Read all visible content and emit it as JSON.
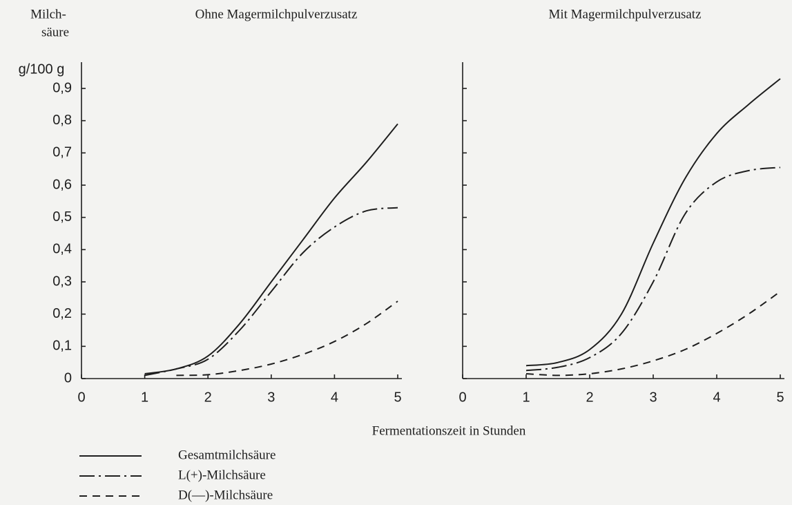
{
  "chart_data": [
    {
      "type": "line",
      "title": "Ohne Magermilchpulverzusatz",
      "ylabel": [
        "Milch-",
        "säure"
      ],
      "yunit": "g/100 g",
      "xlabel": "Fermentationszeit in Stunden",
      "x": [
        1,
        1.5,
        2,
        2.5,
        3,
        3.5,
        4,
        4.5,
        5
      ],
      "xlim": [
        0,
        5
      ],
      "xticks": [
        0,
        1,
        2,
        3,
        4,
        5
      ],
      "ylim": [
        0,
        0.9
      ],
      "yticks": [
        0,
        {
          "value": 0.1,
          "label": "0,1"
        },
        {
          "value": 0.2,
          "label": "0,2"
        },
        {
          "value": 0.3,
          "label": "0,3"
        },
        {
          "value": 0.4,
          "label": "0,4"
        },
        {
          "value": 0.5,
          "label": "0,5"
        },
        {
          "value": 0.6,
          "label": "0,6"
        },
        {
          "value": 0.7,
          "label": "0,7"
        },
        {
          "value": 0.8,
          "label": "0,8"
        },
        {
          "value": 0.9,
          "label": "0,9"
        }
      ],
      "show_ytick_labels": true,
      "grid": false,
      "series": [
        {
          "name": "Gesamtmilchsäure",
          "color": "#1e1e1e",
          "dash": "solid",
          "values": [
            0.015,
            0.03,
            0.07,
            0.17,
            0.3,
            0.43,
            0.56,
            0.67,
            0.79
          ]
        },
        {
          "name": "L(+)-Milchsäure",
          "color": "#1e1e1e",
          "dash": "dashdot",
          "values": [
            0.01,
            0.03,
            0.06,
            0.15,
            0.27,
            0.39,
            0.47,
            0.52,
            0.53
          ]
        },
        {
          "name": "D(—)-Milchsäure",
          "color": "#1e1e1e",
          "dash": "dashed",
          "values": [
            null,
            0.01,
            0.012,
            0.025,
            0.045,
            0.075,
            0.115,
            0.17,
            0.24
          ]
        }
      ]
    },
    {
      "type": "line",
      "title": "Mit Magermilchpulverzusatz",
      "x": [
        1,
        1.5,
        2,
        2.5,
        3,
        3.5,
        4,
        4.5,
        5
      ],
      "xlim": [
        0,
        5
      ],
      "xticks": [
        0,
        1,
        2,
        3,
        4,
        5
      ],
      "ylim": [
        0,
        0.9
      ],
      "yticks": [
        0,
        0.1,
        0.2,
        0.3,
        0.4,
        0.5,
        0.6,
        0.7,
        0.8,
        0.9
      ],
      "show_ytick_labels": false,
      "grid": false,
      "series": [
        {
          "color": "#1e1e1e",
          "dash": "solid",
          "values": [
            0.04,
            0.05,
            0.09,
            0.2,
            0.42,
            0.62,
            0.76,
            0.85,
            0.93
          ]
        },
        {
          "color": "#1e1e1e",
          "dash": "dashdot",
          "values": [
            0.025,
            0.035,
            0.065,
            0.14,
            0.3,
            0.51,
            0.61,
            0.645,
            0.655
          ]
        },
        {
          "color": "#1e1e1e",
          "dash": "dashed",
          "values": [
            0.015,
            0.01,
            0.015,
            0.03,
            0.055,
            0.09,
            0.14,
            0.2,
            0.27
          ]
        }
      ]
    }
  ]
}
